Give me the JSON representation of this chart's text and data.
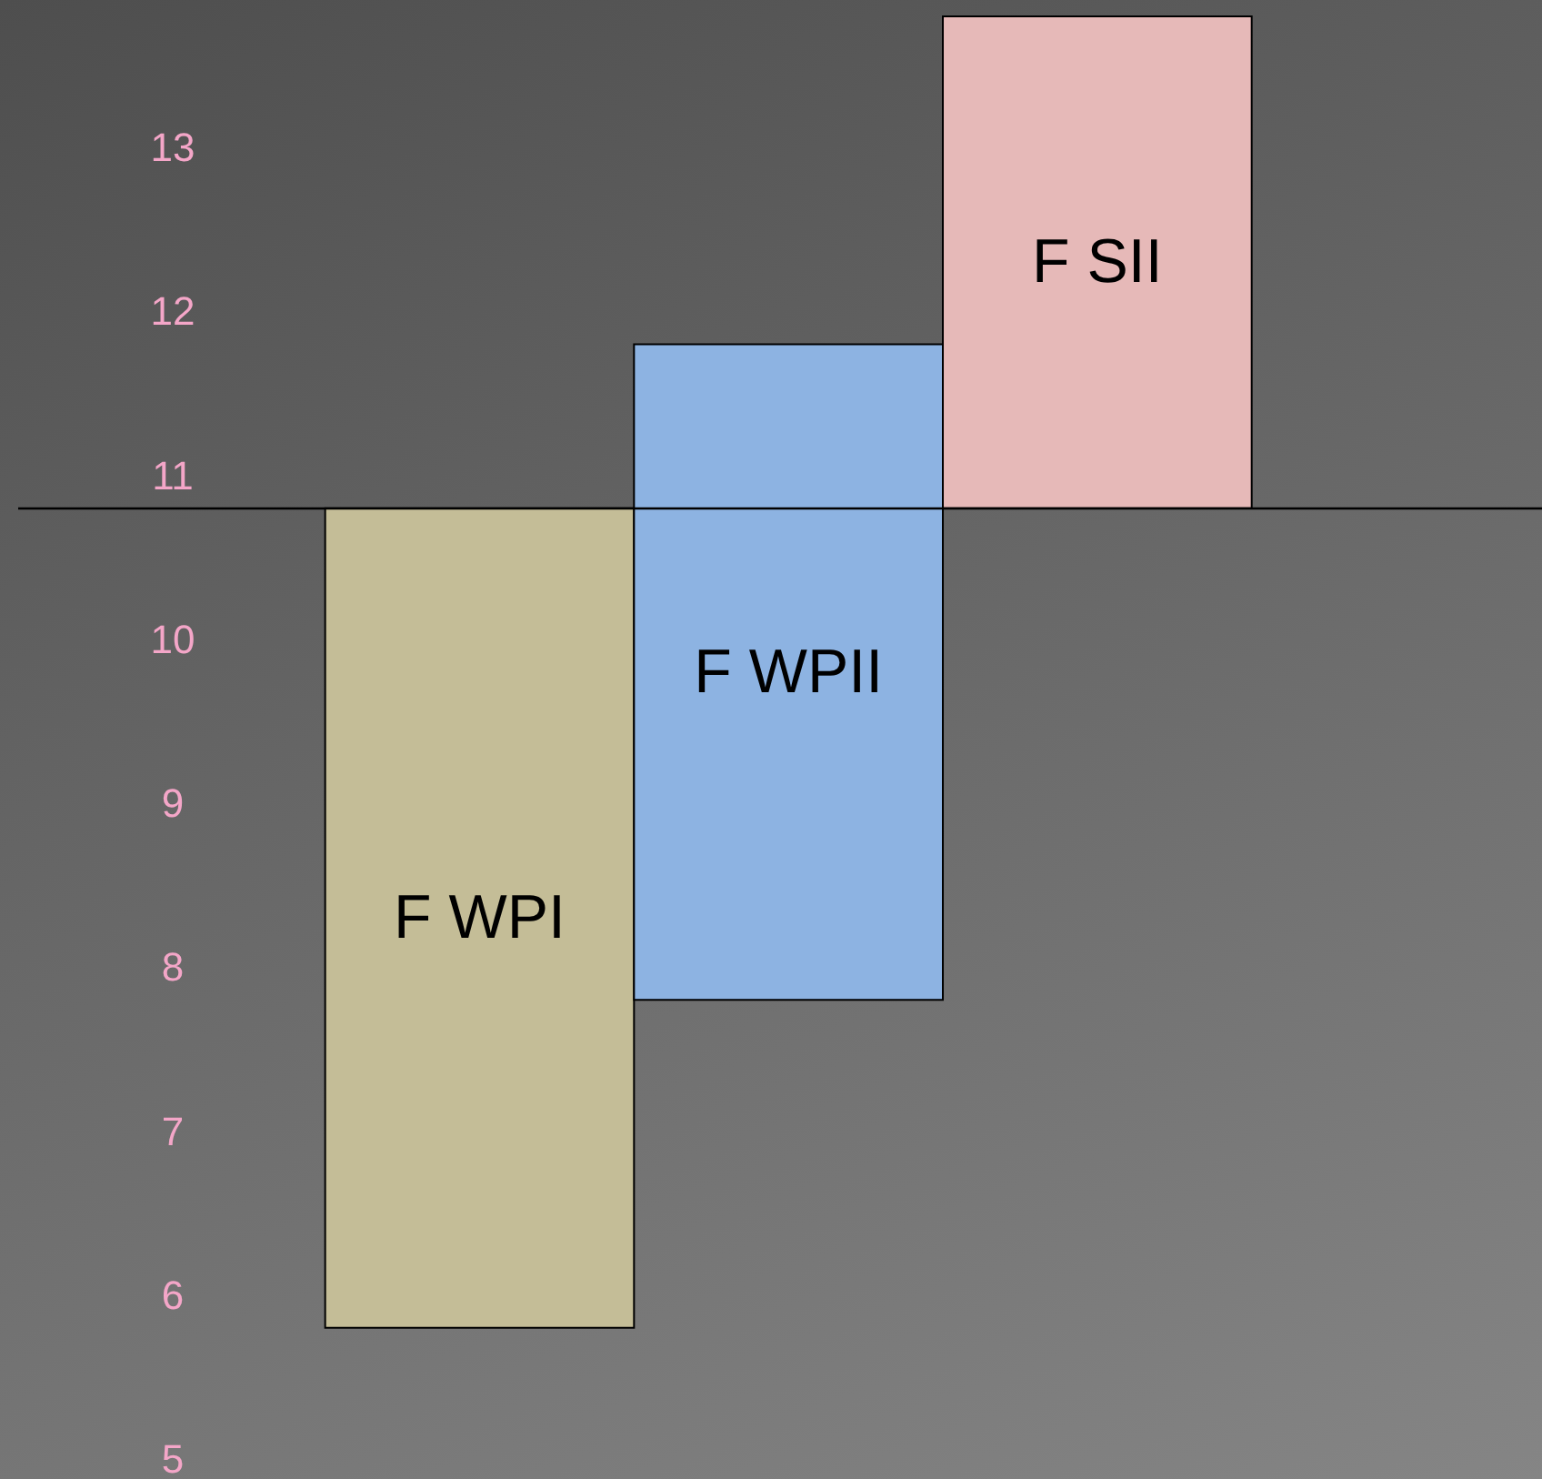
{
  "chart_data": {
    "type": "bar",
    "categories": [
      "F WPI",
      "F WPII",
      "F SII"
    ],
    "base": [
      5.8,
      7.8,
      10.8
    ],
    "values": [
      5,
      4,
      3
    ],
    "colors": [
      "#c4bd97",
      "#8db3e2",
      "#e6b9b8"
    ],
    "ylim": [
      4.9,
      13.9
    ],
    "yticks": [
      5,
      6,
      7,
      8,
      9,
      10,
      11,
      12,
      13
    ],
    "ref_lines": [
      {
        "axis": "y",
        "value": 10.8,
        "color": "#000000"
      }
    ],
    "grid": false
  }
}
